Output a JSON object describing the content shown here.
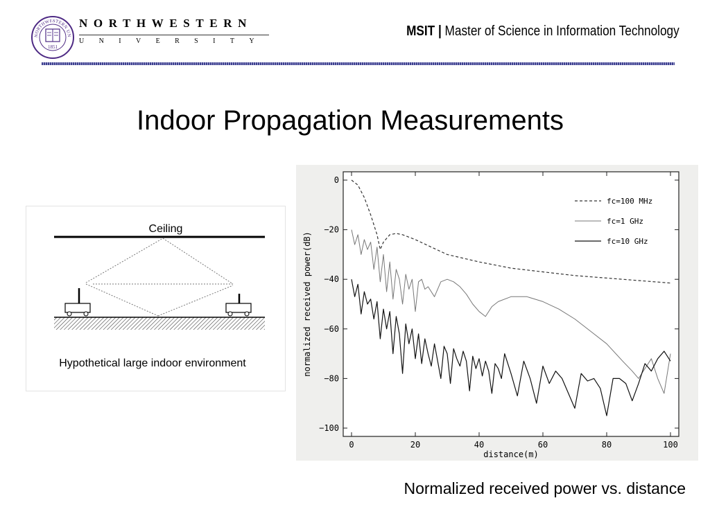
{
  "header": {
    "university_name": "NORTHWESTERN",
    "university_sub": "UNIVERSITY",
    "logo_text": "NORTHWESTERN UNIVERSITY",
    "logo_year": "1851",
    "program_abbr": "MSIT",
    "program_separator": "|",
    "program_full": "Master of Science in Information Technology"
  },
  "slide": {
    "title": "Indoor Propagation Measurements",
    "caption": "Normalized received power vs. distance"
  },
  "diagram": {
    "ceiling_label": "Ceiling",
    "caption": "Hypothetical large indoor environment"
  },
  "chart_data": {
    "type": "line",
    "xlabel": "distance(m)",
    "ylabel": "normalized received power(dB)",
    "xlim": [
      0,
      100
    ],
    "ylim": [
      -100,
      0
    ],
    "xticks": [
      0,
      20,
      40,
      60,
      80,
      100
    ],
    "yticks": [
      0,
      -20,
      -40,
      -60,
      -80,
      -100
    ],
    "legend_position": "top-right",
    "grid": false,
    "series": [
      {
        "name": "fc=100 MHz",
        "style": "dashed",
        "x": [
          0,
          2,
          4,
          6,
          8,
          9,
          10,
          12,
          14,
          16,
          20,
          25,
          30,
          40,
          50,
          60,
          70,
          80,
          90,
          100
        ],
        "y": [
          0,
          -2,
          -7,
          -14,
          -22,
          -28,
          -25,
          -22,
          -21.5,
          -22,
          -24,
          -27,
          -30,
          -33,
          -35.5,
          -37,
          -38.5,
          -39.5,
          -40.5,
          -41.5
        ]
      },
      {
        "name": "fc=1 GHz",
        "style": "solid-thin",
        "x": [
          0,
          1,
          2,
          3,
          4,
          5,
          6,
          7,
          8,
          9,
          10,
          11,
          12,
          13,
          14,
          15,
          16,
          17,
          18,
          19,
          20,
          21,
          22,
          23,
          24,
          26,
          28,
          30,
          32,
          34,
          36,
          38,
          40,
          42,
          44,
          46,
          50,
          55,
          60,
          65,
          70,
          75,
          80,
          85,
          88,
          90,
          92,
          94,
          96,
          98,
          100
        ],
        "y": [
          -20,
          -26,
          -22,
          -30,
          -24,
          -28,
          -25,
          -36,
          -27,
          -41,
          -30,
          -45,
          -33,
          -48,
          -36,
          -40,
          -50,
          -38,
          -44,
          -40,
          -53,
          -41,
          -40,
          -44,
          -43,
          -47,
          -41,
          -40,
          -41,
          -43,
          -46,
          -50,
          -53,
          -55,
          -51,
          -49,
          -47,
          -47,
          -49,
          -52,
          -56,
          -61,
          -66,
          -73,
          -77,
          -80,
          -76,
          -72,
          -80,
          -86,
          -70
        ]
      },
      {
        "name": "fc=10 GHz",
        "style": "solid-thick",
        "x": [
          0,
          1,
          2,
          3,
          4,
          5,
          6,
          7,
          8,
          9,
          10,
          11,
          12,
          13,
          14,
          15,
          16,
          17,
          18,
          19,
          20,
          21,
          22,
          23,
          24,
          25,
          26,
          27,
          28,
          29,
          30,
          31,
          32,
          33,
          34,
          35,
          36,
          37,
          38,
          39,
          40,
          41,
          42,
          43,
          44,
          45,
          46,
          47,
          48,
          50,
          52,
          54,
          56,
          58,
          60,
          62,
          64,
          66,
          68,
          70,
          72,
          74,
          76,
          78,
          80,
          82,
          84,
          86,
          88,
          90,
          92,
          94,
          96,
          98,
          100
        ],
        "y": [
          -40,
          -47,
          -42,
          -54,
          -45,
          -50,
          -48,
          -56,
          -49,
          -64,
          -52,
          -60,
          -53,
          -70,
          -55,
          -62,
          -78,
          -58,
          -66,
          -60,
          -72,
          -62,
          -74,
          -64,
          -70,
          -75,
          -66,
          -73,
          -80,
          -67,
          -70,
          -82,
          -68,
          -72,
          -75,
          -69,
          -73,
          -85,
          -71,
          -76,
          -72,
          -79,
          -73,
          -77,
          -86,
          -74,
          -76,
          -80,
          -70,
          -78,
          -87,
          -73,
          -80,
          -90,
          -75,
          -82,
          -77,
          -80,
          -86,
          -92,
          -78,
          -81,
          -80,
          -84,
          -95,
          -80,
          -80,
          -82,
          -89,
          -82,
          -74,
          -77,
          -72,
          -69,
          -73
        ]
      }
    ]
  }
}
